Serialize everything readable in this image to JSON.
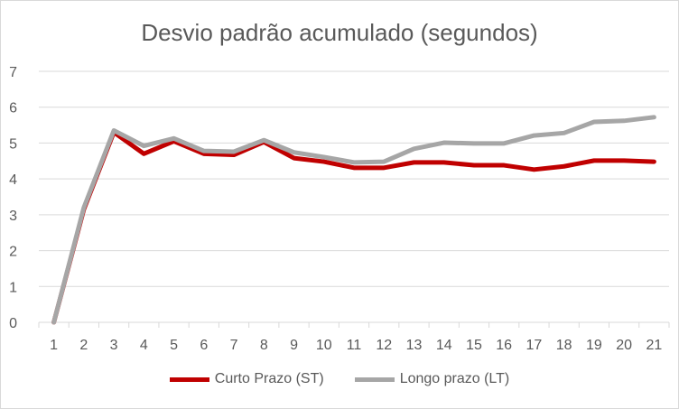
{
  "chart_data": {
    "type": "line",
    "title": "Desvio padrão acumulado (segundos)",
    "xlabel": "",
    "ylabel": "",
    "x": [
      "1",
      "2",
      "3",
      "4",
      "5",
      "6",
      "7",
      "8",
      "9",
      "10",
      "11",
      "12",
      "13",
      "14",
      "15",
      "16",
      "17",
      "18",
      "19",
      "20",
      "21"
    ],
    "ylim": [
      0,
      7
    ],
    "yticks": [
      "0",
      "1",
      "2",
      "3",
      "4",
      "5",
      "6",
      "7"
    ],
    "grid": true,
    "legend_position": "bottom",
    "series": [
      {
        "name": "Curto Prazo (ST)",
        "color": "#c00000",
        "values": [
          0,
          3.15,
          5.3,
          4.7,
          5.05,
          4.7,
          4.67,
          5.03,
          4.58,
          4.48,
          4.31,
          4.31,
          4.46,
          4.46,
          4.38,
          4.38,
          4.26,
          4.35,
          4.51,
          4.51,
          4.48
        ]
      },
      {
        "name": "Longo prazo (LT)",
        "color": "#a6a6a6",
        "values": [
          0,
          3.2,
          5.35,
          4.92,
          5.13,
          4.78,
          4.76,
          5.08,
          4.74,
          4.61,
          4.46,
          4.48,
          4.84,
          5.01,
          4.99,
          4.99,
          5.21,
          5.28,
          5.59,
          5.62,
          5.72
        ]
      }
    ]
  }
}
